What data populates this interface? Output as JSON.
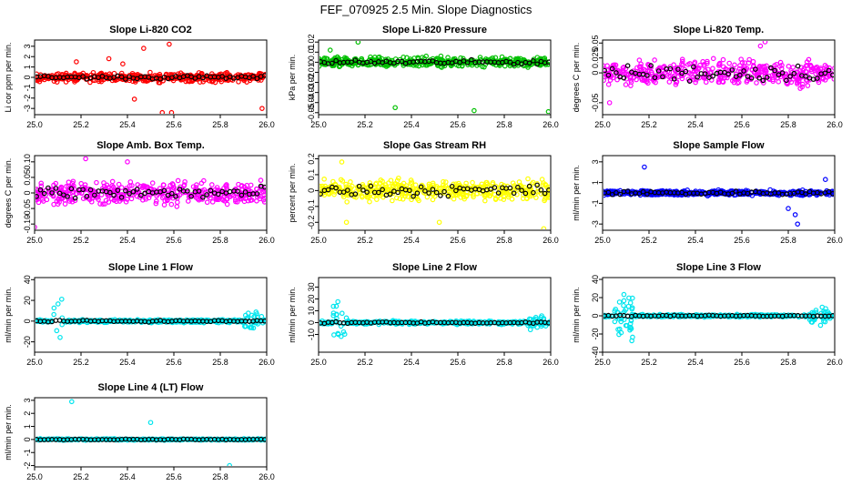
{
  "page_title": "FEF_070925  2.5 Min. Slope Diagnostics",
  "chart_data": [
    {
      "id": "co2",
      "type": "scatter",
      "title": "Slope Li-820 CO2",
      "ylabel": "Li cor ppm per min.",
      "xlim": [
        25.0,
        26.0
      ],
      "ylim": [
        -3.6,
        3.6
      ],
      "yticks": [
        -3,
        -2,
        -1,
        0,
        1,
        2,
        3
      ],
      "xticks": [
        25.0,
        25.2,
        25.4,
        25.6,
        25.8,
        26.0
      ],
      "color": "#ff0000",
      "noise": 0.25,
      "spread": 0.6,
      "outliers": [
        [
          25.55,
          -3.4
        ],
        [
          25.59,
          -3.4
        ],
        [
          25.58,
          3.2
        ],
        [
          25.47,
          2.8
        ],
        [
          25.38,
          1.3
        ],
        [
          25.18,
          1.5
        ],
        [
          25.98,
          -3.0
        ],
        [
          25.43,
          -2.1
        ],
        [
          25.32,
          1.8
        ]
      ]
    },
    {
      "id": "pressure",
      "type": "scatter",
      "title": "Slope Li-820 Pressure",
      "ylabel": "kPa per min.",
      "xlim": [
        25.0,
        26.0
      ],
      "ylim": [
        -0.052,
        0.022
      ],
      "yticks": [
        -0.05,
        -0.04,
        -0.03,
        -0.02,
        -0.01,
        0.0,
        0.01,
        0.02
      ],
      "xticks": [
        25.0,
        25.2,
        25.4,
        25.6,
        25.8,
        26.0
      ],
      "color": "#00c000",
      "noise": 0.003,
      "spread": 0.007,
      "outliers": [
        [
          25.33,
          -0.045
        ],
        [
          25.67,
          -0.048
        ],
        [
          25.99,
          -0.049
        ],
        [
          25.17,
          0.02
        ],
        [
          25.05,
          0.012
        ]
      ]
    },
    {
      "id": "temp",
      "type": "scatter",
      "title": "Slope Li-820 Temp.",
      "ylabel": "degrees C per min.",
      "xlim": [
        25.0,
        26.0
      ],
      "ylim": [
        -0.07,
        0.055
      ],
      "yticks": [
        -0.05,
        0.0,
        0.025,
        0.05
      ],
      "ytick_labels": [
        "-0.05",
        "0",
        "0.025",
        "0.05"
      ],
      "xticks": [
        25.0,
        25.2,
        25.4,
        25.6,
        25.8,
        26.0
      ],
      "color": "#ff00ff",
      "noise": 0.02,
      "spread": 0.03,
      "outliers": [
        [
          25.7,
          0.052
        ],
        [
          25.03,
          -0.05
        ],
        [
          25.68,
          0.045
        ]
      ]
    },
    {
      "id": "ambbox",
      "type": "scatter",
      "title": "Slope Amb. Box Temp.",
      "ylabel": "degrees C per min.",
      "xlim": [
        25.0,
        26.0
      ],
      "ylim": [
        -0.12,
        0.12
      ],
      "yticks": [
        -0.1,
        -0.05,
        0.0,
        0.05,
        0.1
      ],
      "ytick_labels": [
        "-0.10",
        "-0.05",
        "0",
        "0.05",
        "0.10"
      ],
      "xticks": [
        25.0,
        25.2,
        25.4,
        25.6,
        25.8,
        26.0
      ],
      "color": "#ff00ff",
      "noise": 0.03,
      "spread": 0.05,
      "outliers": [
        [
          25.22,
          0.11
        ],
        [
          25.4,
          0.1
        ],
        [
          25.0,
          -0.11
        ]
      ]
    },
    {
      "id": "rh",
      "type": "scatter",
      "title": "Slope Gas Stream RH",
      "ylabel": "percent per min.",
      "xlim": [
        25.0,
        26.0
      ],
      "ylim": [
        -0.25,
        0.22
      ],
      "yticks": [
        -0.2,
        -0.1,
        0.0,
        0.1,
        0.2
      ],
      "xticks": [
        25.0,
        25.2,
        25.4,
        25.6,
        25.8,
        26.0
      ],
      "color": "#ffff00",
      "noise": 0.05,
      "spread": 0.09,
      "outliers": [
        [
          25.1,
          0.18
        ],
        [
          25.12,
          -0.2
        ],
        [
          25.97,
          -0.24
        ],
        [
          25.52,
          -0.2
        ]
      ]
    },
    {
      "id": "sampleflow",
      "type": "scatter",
      "title": "Slope Sample Flow",
      "ylabel": "ml/min per min.",
      "xlim": [
        25.0,
        26.0
      ],
      "ylim": [
        -3.6,
        3.6
      ],
      "yticks": [
        -3,
        -1,
        1,
        3
      ],
      "xticks": [
        25.0,
        25.2,
        25.4,
        25.6,
        25.8,
        26.0
      ],
      "color": "#0000ff",
      "noise": 0.25,
      "spread": 0.35,
      "outliers": [
        [
          25.84,
          -3.0
        ],
        [
          25.83,
          -2.1
        ],
        [
          25.18,
          2.5
        ],
        [
          25.96,
          1.3
        ],
        [
          25.8,
          -1.5
        ]
      ]
    },
    {
      "id": "line1",
      "type": "scatter",
      "title": "Slope Line 1 Flow",
      "ylabel": "ml/min per min.",
      "xlim": [
        25.0,
        26.0
      ],
      "ylim": [
        -30,
        42
      ],
      "yticks": [
        -20,
        0,
        20,
        40
      ],
      "xticks": [
        25.0,
        25.2,
        25.4,
        25.6,
        25.8,
        26.0
      ],
      "color": "#00e5ee",
      "noise": 1.0,
      "spread": 2.0,
      "burst": [
        [
          25.08,
          25.12,
          28
        ],
        [
          25.9,
          25.98,
          12
        ]
      ]
    },
    {
      "id": "line2",
      "type": "scatter",
      "title": "Slope Line 2 Flow",
      "ylabel": "ml/min per min.",
      "xlim": [
        25.0,
        26.0
      ],
      "ylim": [
        -25,
        38
      ],
      "yticks": [
        -10,
        0,
        10,
        20,
        30
      ],
      "xticks": [
        25.0,
        25.2,
        25.4,
        25.6,
        25.8,
        26.0
      ],
      "color": "#00e5ee",
      "noise": 1.0,
      "spread": 2.0,
      "burst": [
        [
          25.06,
          25.12,
          25
        ],
        [
          25.9,
          25.98,
          8
        ]
      ]
    },
    {
      "id": "line3",
      "type": "scatter",
      "title": "Slope Line 3 Flow",
      "ylabel": "ml/min per min.",
      "xlim": [
        25.0,
        26.0
      ],
      "ylim": [
        -40,
        42
      ],
      "yticks": [
        -40,
        -20,
        0,
        20,
        40
      ],
      "xticks": [
        25.0,
        25.2,
        25.4,
        25.6,
        25.8,
        26.0
      ],
      "color": "#00e5ee",
      "noise": 1.0,
      "spread": 2.0,
      "burst": [
        [
          25.05,
          25.13,
          32
        ],
        [
          25.88,
          25.98,
          12
        ]
      ]
    },
    {
      "id": "line4",
      "type": "scatter",
      "title": "Slope Line 4 (LT) Flow",
      "ylabel": "ml/min per min.",
      "xlim": [
        25.0,
        26.0
      ],
      "ylim": [
        -2.1,
        3.2
      ],
      "yticks": [
        -2,
        -1,
        0,
        1,
        2,
        3
      ],
      "xticks": [
        25.0,
        25.2,
        25.4,
        25.6,
        25.8,
        26.0
      ],
      "color": "#00e5ee",
      "noise": 0.05,
      "spread": 0.08,
      "outliers": [
        [
          25.16,
          2.9
        ],
        [
          25.5,
          1.3
        ],
        [
          25.84,
          -2.0
        ]
      ]
    }
  ]
}
